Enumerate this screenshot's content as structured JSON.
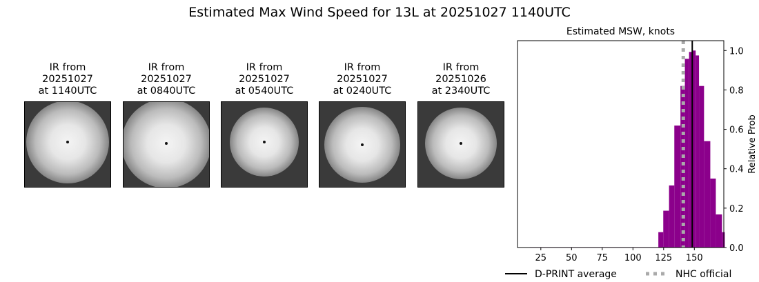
{
  "title": "Estimated Max Wind Speed for 13L at 20251027 1140UTC",
  "panels": [
    {
      "l1": "IR from",
      "l2": "20251027",
      "l3": "at 1140UTC"
    },
    {
      "l1": "IR from",
      "l2": "20251027",
      "l3": "at 0840UTC"
    },
    {
      "l1": "IR from",
      "l2": "20251027",
      "l3": "at 0540UTC"
    },
    {
      "l1": "IR from",
      "l2": "20251027",
      "l3": "at 0240UTC"
    },
    {
      "l1": "IR from",
      "l2": "20251026",
      "l3": "at 2340UTC"
    }
  ],
  "chart_data": {
    "type": "bar",
    "title": "Estimated MSW, knots",
    "ylabel": "Relative Prob",
    "xlim": [
      6,
      174
    ],
    "ylim": [
      0,
      1.05
    ],
    "xticks": [
      25,
      50,
      75,
      100,
      125,
      150
    ],
    "yticks": [
      0.0,
      0.2,
      0.4,
      0.6,
      0.8,
      1.0
    ],
    "bar_color": "#8b008b",
    "bin_edges": [
      16,
      120.7,
      124.7,
      129.4,
      133.7,
      138.7,
      142.3,
      145.7,
      148.5,
      151.1,
      153.8,
      157.9,
      163,
      167.5,
      172.5,
      174.8
    ],
    "values": [
      0.002,
      0.078,
      0.187,
      0.315,
      0.619,
      0.82,
      0.958,
      0.993,
      1.0,
      0.975,
      0.82,
      0.54,
      0.35,
      0.168,
      0.078
    ],
    "dprint_average": 148.3,
    "nhc_official": 141,
    "legend": {
      "dprint": "D-PRINT average",
      "nhc": "NHC official",
      "placement": "bottom"
    }
  }
}
